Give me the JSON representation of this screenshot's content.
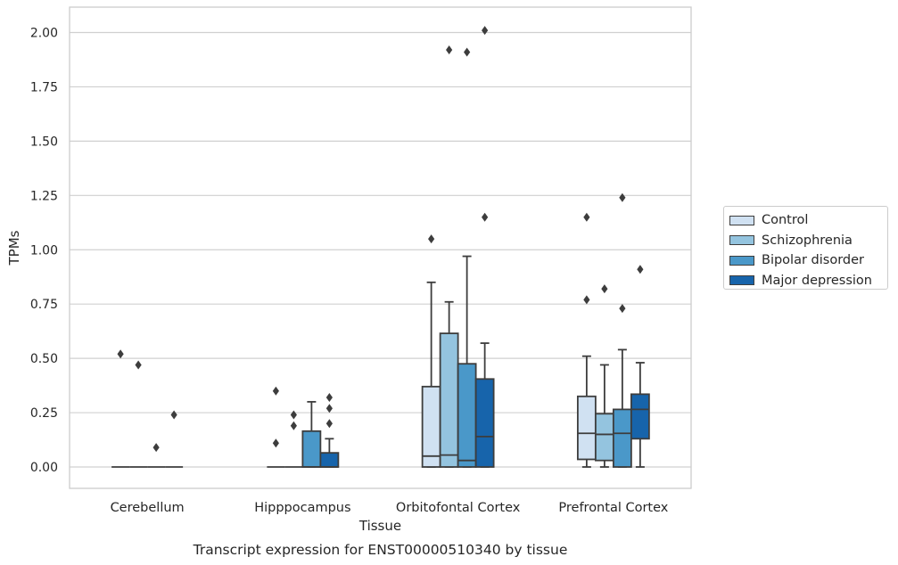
{
  "chart_data": {
    "type": "box",
    "title": "Transcript expression for ENST00000510340 by tissue",
    "xlabel": "Tissue",
    "ylabel": "TPMs",
    "ylim": [
      -0.1,
      2.12
    ],
    "yticks": [
      "0.00",
      "0.25",
      "0.50",
      "0.75",
      "1.00",
      "1.25",
      "1.50",
      "1.75",
      "2.00"
    ],
    "ytick_values": [
      0,
      0.25,
      0.5,
      0.75,
      1.0,
      1.25,
      1.5,
      1.75,
      2.0
    ],
    "grid": "horizontal",
    "legend_position": "right",
    "categories": [
      "Cerebellum",
      "Hipppocampus",
      "Orbitofontal Cortex",
      "Prefrontal Cortex"
    ],
    "series": [
      {
        "name": "Control",
        "color": "#d0e1f2",
        "boxes": [
          {
            "q1": 0,
            "median": 0,
            "q3": 0,
            "whisker_low": 0,
            "whisker_high": 0,
            "outliers": [
              0.52
            ]
          },
          {
            "q1": 0,
            "median": 0,
            "q3": 0,
            "whisker_low": 0,
            "whisker_high": 0,
            "outliers": [
              0.35,
              0.11
            ]
          },
          {
            "q1": 0,
            "median": 0.05,
            "q3": 0.37,
            "whisker_low": 0,
            "whisker_high": 0.85,
            "outliers": [
              1.05
            ]
          },
          {
            "q1": 0.035,
            "median": 0.155,
            "q3": 0.325,
            "whisker_low": 0,
            "whisker_high": 0.51,
            "outliers": [
              0.77,
              1.15
            ]
          }
        ]
      },
      {
        "name": "Schizophrenia",
        "color": "#94c4df",
        "boxes": [
          {
            "q1": 0,
            "median": 0,
            "q3": 0,
            "whisker_low": 0,
            "whisker_high": 0,
            "outliers": [
              0.47
            ]
          },
          {
            "q1": 0,
            "median": 0,
            "q3": 0,
            "whisker_low": 0,
            "whisker_high": 0,
            "outliers": [
              0.24,
              0.19
            ]
          },
          {
            "q1": 0,
            "median": 0.055,
            "q3": 0.615,
            "whisker_low": 0,
            "whisker_high": 0.76,
            "outliers": [
              1.92
            ]
          },
          {
            "q1": 0.03,
            "median": 0.15,
            "q3": 0.245,
            "whisker_low": 0,
            "whisker_high": 0.47,
            "outliers": [
              0.82
            ]
          }
        ]
      },
      {
        "name": "Bipolar disorder",
        "color": "#4a98c9",
        "boxes": [
          {
            "q1": 0,
            "median": 0,
            "q3": 0,
            "whisker_low": 0,
            "whisker_high": 0,
            "outliers": [
              0.09
            ]
          },
          {
            "q1": 0,
            "median": 0,
            "q3": 0.165,
            "whisker_low": 0,
            "whisker_high": 0.3,
            "outliers": []
          },
          {
            "q1": 0,
            "median": 0.03,
            "q3": 0.475,
            "whisker_low": 0,
            "whisker_high": 0.97,
            "outliers": [
              1.91
            ]
          },
          {
            "q1": 0,
            "median": 0.155,
            "q3": 0.265,
            "whisker_low": 0,
            "whisker_high": 0.54,
            "outliers": [
              0.73,
              1.24
            ]
          }
        ]
      },
      {
        "name": "Major depression",
        "color": "#1764ab",
        "boxes": [
          {
            "q1": 0,
            "median": 0,
            "q3": 0,
            "whisker_low": 0,
            "whisker_high": 0,
            "outliers": [
              0.24
            ]
          },
          {
            "q1": 0,
            "median": 0,
            "q3": 0.065,
            "whisker_low": 0,
            "whisker_high": 0.13,
            "outliers": [
              0.32,
              0.27,
              0.2
            ]
          },
          {
            "q1": 0,
            "median": 0.14,
            "q3": 0.405,
            "whisker_low": 0,
            "whisker_high": 0.57,
            "outliers": [
              1.15,
              2.01
            ]
          },
          {
            "q1": 0.13,
            "median": 0.265,
            "q3": 0.335,
            "whisker_low": 0,
            "whisker_high": 0.48,
            "outliers": [
              0.91
            ]
          }
        ]
      }
    ]
  }
}
